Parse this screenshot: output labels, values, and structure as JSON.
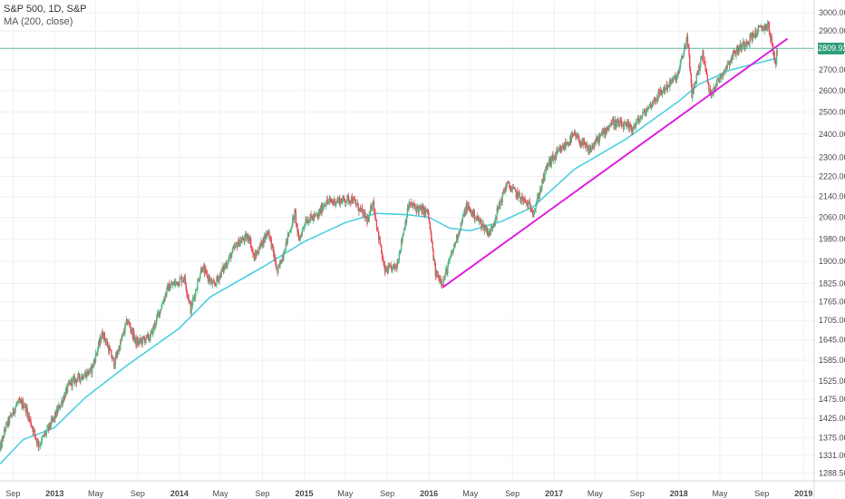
{
  "legend": {
    "symbol_line": "S&P 500, 1D, S&P",
    "ma_line": "MA (200, close)"
  },
  "current_price_label": "2809.92",
  "chart_data": {
    "type": "candlestick",
    "title": "S&P 500, 1D, S&P",
    "ylim": [
      1250,
      3050
    ],
    "y_scale": "log",
    "grid": true,
    "colors": {
      "up": "#53b987",
      "down": "#eb4d5c",
      "ma": "#4dd0e1",
      "trendline": "#e020e0",
      "price_line": "#2e9e78"
    },
    "y_tick_labels": [
      "3000.00",
      "2900.00",
      "2800.00",
      "2700.00",
      "2600.00",
      "2500.00",
      "2400.00",
      "2300.00",
      "2220.00",
      "2140.00",
      "2060.00",
      "1980.00",
      "1900.00",
      "1825.00",
      "1765.00",
      "1705.00",
      "1645.00",
      "1585.00",
      "1525.00",
      "1475.00",
      "1425.00",
      "1375.00",
      "1331.00",
      "1288.50"
    ],
    "x_tick_labels": [
      {
        "label": "Sep",
        "date": "2012-09-01"
      },
      {
        "label": "2013",
        "date": "2013-01-01"
      },
      {
        "label": "May",
        "date": "2013-05-01"
      },
      {
        "label": "Sep",
        "date": "2013-09-01"
      },
      {
        "label": "2014",
        "date": "2014-01-01"
      },
      {
        "label": "May",
        "date": "2014-05-01"
      },
      {
        "label": "Sep",
        "date": "2014-09-01"
      },
      {
        "label": "2015",
        "date": "2015-01-01"
      },
      {
        "label": "May",
        "date": "2015-05-01"
      },
      {
        "label": "Sep",
        "date": "2015-09-01"
      },
      {
        "label": "2016",
        "date": "2016-01-01"
      },
      {
        "label": "May",
        "date": "2016-05-01"
      },
      {
        "label": "Sep",
        "date": "2016-09-01"
      },
      {
        "label": "2017",
        "date": "2017-01-01"
      },
      {
        "label": "May",
        "date": "2017-05-01"
      },
      {
        "label": "Sep",
        "date": "2017-09-01"
      },
      {
        "label": "2018",
        "date": "2018-01-01"
      },
      {
        "label": "May",
        "date": "2018-05-01"
      },
      {
        "label": "Sep",
        "date": "2018-09-01"
      },
      {
        "label": "2019",
        "date": "2019-01-01"
      }
    ],
    "series": [
      {
        "name": "S&P 500",
        "kind": "price",
        "points": [
          {
            "x": "2012-07-25",
            "y": 1345
          },
          {
            "x": "2012-08-10",
            "y": 1400
          },
          {
            "x": "2012-09-14",
            "y": 1465
          },
          {
            "x": "2012-10-05",
            "y": 1460
          },
          {
            "x": "2012-11-15",
            "y": 1355
          },
          {
            "x": "2012-12-31",
            "y": 1426
          },
          {
            "x": "2013-02-15",
            "y": 1520
          },
          {
            "x": "2013-04-18",
            "y": 1555
          },
          {
            "x": "2013-05-21",
            "y": 1668
          },
          {
            "x": "2013-06-24",
            "y": 1575
          },
          {
            "x": "2013-08-02",
            "y": 1705
          },
          {
            "x": "2013-08-28",
            "y": 1635
          },
          {
            "x": "2013-10-08",
            "y": 1655
          },
          {
            "x": "2013-11-28",
            "y": 1810
          },
          {
            "x": "2014-01-15",
            "y": 1845
          },
          {
            "x": "2014-02-03",
            "y": 1740
          },
          {
            "x": "2014-03-07",
            "y": 1880
          },
          {
            "x": "2014-04-11",
            "y": 1815
          },
          {
            "x": "2014-06-20",
            "y": 1965
          },
          {
            "x": "2014-07-24",
            "y": 1990
          },
          {
            "x": "2014-08-07",
            "y": 1910
          },
          {
            "x": "2014-09-18",
            "y": 2012
          },
          {
            "x": "2014-10-15",
            "y": 1862
          },
          {
            "x": "2014-12-05",
            "y": 2077
          },
          {
            "x": "2014-12-16",
            "y": 1972
          },
          {
            "x": "2015-01-05",
            "y": 2050
          },
          {
            "x": "2015-02-10",
            "y": 2065
          },
          {
            "x": "2015-03-02",
            "y": 2117
          },
          {
            "x": "2015-05-21",
            "y": 2131
          },
          {
            "x": "2015-07-08",
            "y": 2045
          },
          {
            "x": "2015-07-20",
            "y": 2128
          },
          {
            "x": "2015-08-24",
            "y": 1867
          },
          {
            "x": "2015-09-28",
            "y": 1882
          },
          {
            "x": "2015-11-03",
            "y": 2109
          },
          {
            "x": "2015-12-29",
            "y": 2078
          },
          {
            "x": "2016-01-20",
            "y": 1859
          },
          {
            "x": "2016-02-11",
            "y": 1829
          },
          {
            "x": "2016-04-20",
            "y": 2102
          },
          {
            "x": "2016-06-27",
            "y": 2000
          },
          {
            "x": "2016-08-15",
            "y": 2190
          },
          {
            "x": "2016-11-04",
            "y": 2085
          },
          {
            "x": "2016-12-13",
            "y": 2270
          },
          {
            "x": "2017-03-01",
            "y": 2395
          },
          {
            "x": "2017-04-13",
            "y": 2328
          },
          {
            "x": "2017-06-19",
            "y": 2453
          },
          {
            "x": "2017-08-18",
            "y": 2425
          },
          {
            "x": "2017-10-31",
            "y": 2575
          },
          {
            "x": "2017-12-29",
            "y": 2673
          },
          {
            "x": "2018-01-26",
            "y": 2872
          },
          {
            "x": "2018-02-08",
            "y": 2581
          },
          {
            "x": "2018-03-12",
            "y": 2783
          },
          {
            "x": "2018-04-02",
            "y": 2581
          },
          {
            "x": "2018-06-12",
            "y": 2786
          },
          {
            "x": "2018-08-29",
            "y": 2914
          },
          {
            "x": "2018-09-20",
            "y": 2930
          },
          {
            "x": "2018-10-11",
            "y": 2728
          },
          {
            "x": "2018-10-16",
            "y": 2809
          }
        ]
      },
      {
        "name": "MA (200, close)",
        "kind": "line",
        "points": [
          {
            "x": "2012-07-25",
            "y": 1310
          },
          {
            "x": "2012-10-01",
            "y": 1370
          },
          {
            "x": "2012-12-31",
            "y": 1400
          },
          {
            "x": "2013-04-01",
            "y": 1480
          },
          {
            "x": "2013-08-01",
            "y": 1570
          },
          {
            "x": "2013-12-31",
            "y": 1680
          },
          {
            "x": "2014-04-01",
            "y": 1780
          },
          {
            "x": "2014-09-01",
            "y": 1880
          },
          {
            "x": "2015-01-01",
            "y": 1970
          },
          {
            "x": "2015-05-01",
            "y": 2040
          },
          {
            "x": "2015-08-01",
            "y": 2075
          },
          {
            "x": "2015-11-01",
            "y": 2070
          },
          {
            "x": "2016-01-01",
            "y": 2060
          },
          {
            "x": "2016-03-01",
            "y": 2020
          },
          {
            "x": "2016-05-01",
            "y": 2010
          },
          {
            "x": "2016-08-01",
            "y": 2045
          },
          {
            "x": "2016-11-01",
            "y": 2100
          },
          {
            "x": "2017-03-01",
            "y": 2250
          },
          {
            "x": "2017-08-01",
            "y": 2380
          },
          {
            "x": "2018-01-01",
            "y": 2550
          },
          {
            "x": "2018-03-01",
            "y": 2630
          },
          {
            "x": "2018-06-01",
            "y": 2700
          },
          {
            "x": "2018-10-16",
            "y": 2760
          }
        ]
      },
      {
        "name": "Trendline",
        "kind": "drawing",
        "points": [
          {
            "x": "2016-02-11",
            "y": 1812
          },
          {
            "x": "2018-11-15",
            "y": 2860
          }
        ]
      }
    ],
    "current_price": 2809.92
  }
}
